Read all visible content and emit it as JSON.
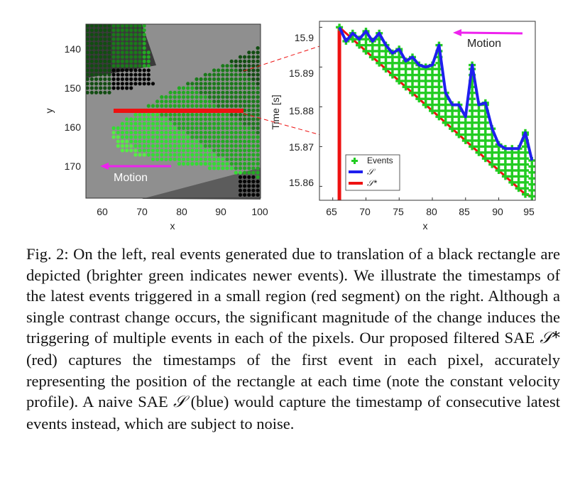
{
  "figure": {
    "left_panel": {
      "xlabel": "x",
      "ylabel": "y",
      "xticks": [
        "60",
        "70",
        "80",
        "90",
        "100"
      ],
      "yticks": [
        "140",
        "150",
        "160",
        "170"
      ],
      "xlim": [
        56,
        100
      ],
      "ylim": [
        134,
        177
      ],
      "motion_label": "Motion",
      "colors": {
        "events": "#22cc22",
        "segment": "#ee1111",
        "arrow": "#ee22ee"
      }
    },
    "right_panel": {
      "xlabel": "x",
      "ylabel": "Time [s]",
      "xticks": [
        "65",
        "70",
        "75",
        "80",
        "85",
        "90",
        "95"
      ],
      "yticks": [
        "15.86",
        "15.87",
        "15.88",
        "15.89",
        "15.9"
      ],
      "motion_label": "Motion",
      "legend": {
        "events": "Events",
        "s": "𝒮",
        "s_star": "𝒮*"
      }
    }
  },
  "chart_data": {
    "type": "line",
    "xlabel": "x",
    "ylabel": "Time [s]",
    "xlim": [
      63,
      95.5
    ],
    "ylim": [
      15.8565,
      15.9015
    ],
    "legend_position": "bottom-left",
    "series": [
      {
        "name": "𝒮",
        "color": "#1f1fee",
        "x": [
          66,
          67,
          68,
          69,
          70,
          71,
          72,
          73,
          74,
          75,
          76,
          77,
          78,
          79,
          80,
          81,
          82,
          83,
          84,
          85,
          86,
          87,
          88,
          89,
          90,
          91,
          92,
          93,
          94,
          95
        ],
        "y": [
          15.9,
          15.8965,
          15.8985,
          15.897,
          15.899,
          15.8965,
          15.8985,
          15.8955,
          15.8935,
          15.8945,
          15.8915,
          15.8925,
          15.8905,
          15.89,
          15.8905,
          15.8955,
          15.8835,
          15.8805,
          15.8805,
          15.8775,
          15.8905,
          15.8805,
          15.881,
          15.8745,
          15.8705,
          15.8695,
          15.8695,
          15.8695,
          15.8735,
          15.8665
        ]
      },
      {
        "name": "𝒮*",
        "color": "#ee1111",
        "x": [
          66,
          67,
          68,
          69,
          70,
          71,
          72,
          73,
          74,
          75,
          76,
          77,
          78,
          79,
          80,
          81,
          82,
          83,
          84,
          85,
          86,
          87,
          88,
          89,
          90,
          91,
          92,
          93,
          94,
          95
        ],
        "y": [
          15.9,
          15.8985,
          15.897,
          15.8955,
          15.894,
          15.8925,
          15.891,
          15.8895,
          15.888,
          15.8865,
          15.885,
          15.8835,
          15.882,
          15.8805,
          15.879,
          15.8775,
          15.876,
          15.8745,
          15.873,
          15.8715,
          15.87,
          15.8685,
          15.867,
          15.8655,
          15.864,
          15.8625,
          15.861,
          15.8595,
          15.858,
          15.8575
        ]
      },
      {
        "name": "Events",
        "color": "#22cc22",
        "marker": "plus"
      }
    ]
  },
  "caption": {
    "p1": "Fig. 2: On the left, real events generated due to translation of a black rectangle are depicted (brighter green indicates newer events). We illustrate the timestamps of the latest events triggered in a small region (red segment) on the right. Although a single contrast change occurs, the significant magnitude of the change induces the triggering of multiple events in each of the pixels. Our proposed filtered SAE ",
    "m1": "𝒮*",
    "p2": " (red) captures the timestamps of the first event in each pixel, accurately representing the position of the rectangle at each time (note the constant velocity profile). A naive SAE ",
    "m2": "𝒮",
    "p3": " (blue) would capture the timestamp of consecutive latest events instead, which are subject to noise."
  }
}
